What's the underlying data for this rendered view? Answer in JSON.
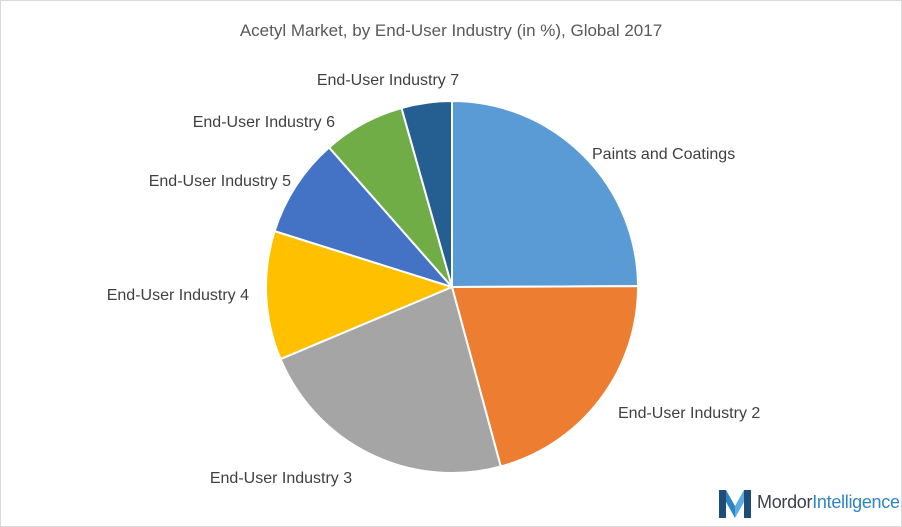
{
  "chart_data": {
    "type": "pie",
    "title": "Acetyl Market, by End-User Industry (in %), Global 2017",
    "slices": [
      {
        "label": "Paints and Coatings",
        "value": 24.5,
        "color": "#5b9bd5"
      },
      {
        "label": "End-User Industry 2",
        "value": 20.5,
        "color": "#ed7d31"
      },
      {
        "label": "End-User Industry 3",
        "value": 22.5,
        "color": "#a5a5a5"
      },
      {
        "label": "End-User Industry 4",
        "value": 11.0,
        "color": "#ffc000"
      },
      {
        "label": "End-User Industry 5",
        "value": 8.5,
        "color": "#4472c4"
      },
      {
        "label": "End-User Industry 6",
        "value": 7.0,
        "color": "#70ad47"
      },
      {
        "label": "End-User Industry 7",
        "value": 4.3,
        "color": "#255e91"
      }
    ],
    "start_angle": "12 o'clock",
    "direction": "clockwise"
  },
  "logo": {
    "word1": "Mordor",
    "word2": "Intelligence"
  }
}
